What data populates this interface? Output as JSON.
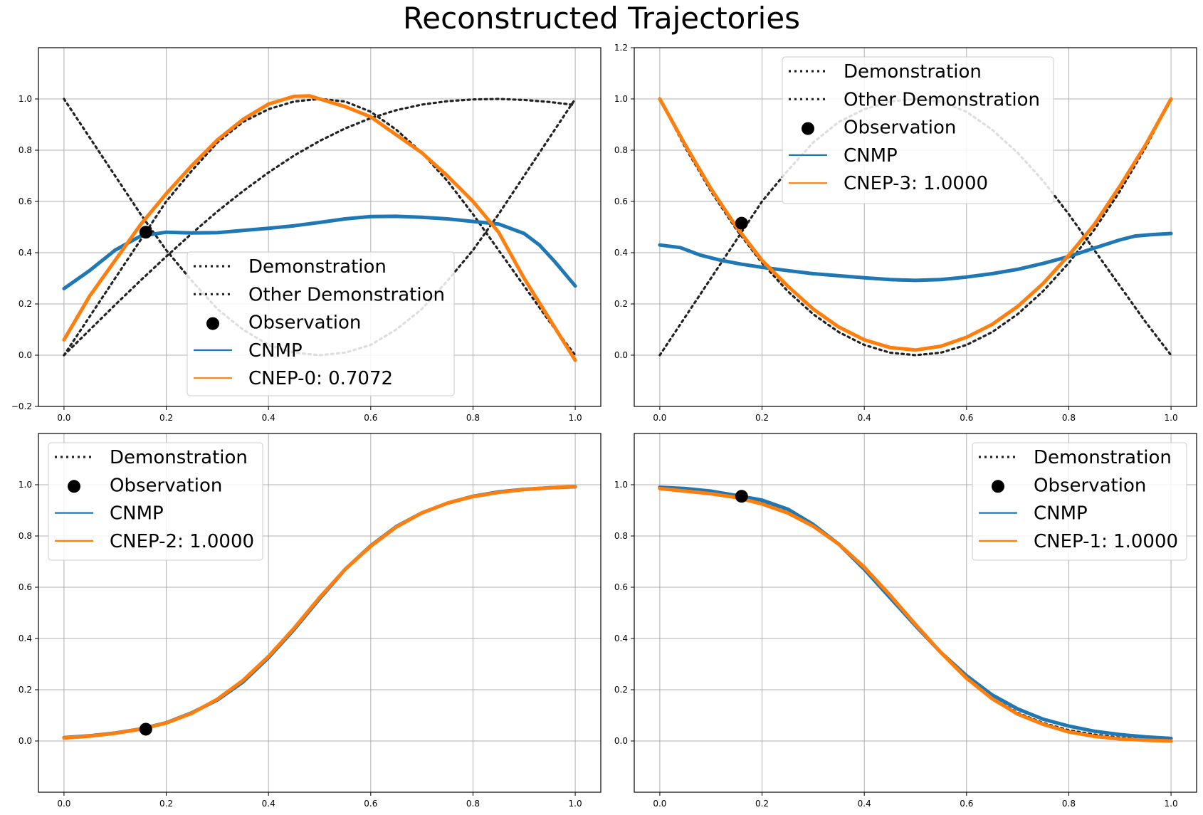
{
  "figure_title": "Reconstructed Trajectories",
  "colors": {
    "cnmp": "#1f77b4",
    "cnep": "#ff7f0e",
    "demo": "#222222",
    "observation": "#000000",
    "grid": "#b0b0b0"
  },
  "chart_data": [
    {
      "type": "line",
      "title": "",
      "xlabel": "",
      "ylabel": "",
      "xlim": [
        -0.05,
        1.05
      ],
      "ylim": [
        -0.2,
        1.2
      ],
      "xticks": [
        0.0,
        0.2,
        0.4,
        0.6,
        0.8,
        1.0
      ],
      "xtick_labels": [
        "0.0",
        "0.2",
        "0.4",
        "0.6",
        "0.8",
        "1.0"
      ],
      "yticks": [
        -0.2,
        0.0,
        0.2,
        0.4,
        0.6,
        0.8,
        1.0
      ],
      "ytick_labels": [
        "−0.2",
        "0.0",
        "0.2",
        "0.4",
        "0.6",
        "0.8",
        "1.0"
      ],
      "grid": true,
      "legend_position": "center",
      "series": [
        {
          "name": "Demonstration",
          "style": "dotted",
          "x": [
            0,
            0.05,
            0.1,
            0.15,
            0.2,
            0.25,
            0.3,
            0.35,
            0.4,
            0.45,
            0.5,
            0.55,
            0.6,
            0.65,
            0.7,
            0.75,
            0.8,
            0.85,
            0.9,
            0.95,
            1.0
          ],
          "y": [
            0,
            0.098,
            0.196,
            0.292,
            0.385,
            0.475,
            0.561,
            0.64,
            0.713,
            0.779,
            0.836,
            0.885,
            0.925,
            0.956,
            0.978,
            0.991,
            0.998,
            1.0,
            0.996,
            0.988,
            0.976
          ]
        },
        {
          "name": "Demonstration",
          "style": "dotted",
          "x": [
            0,
            0.05,
            0.1,
            0.15,
            0.2,
            0.25,
            0.3,
            0.35,
            0.4,
            0.45,
            0.5,
            0.55,
            0.6,
            0.65,
            0.7,
            0.75,
            0.8,
            0.85,
            0.9,
            0.95,
            1.0
          ],
          "y": [
            0,
            0.15,
            0.3,
            0.45,
            0.6,
            0.72,
            0.83,
            0.91,
            0.96,
            0.99,
            1.0,
            0.99,
            0.95,
            0.88,
            0.79,
            0.68,
            0.55,
            0.41,
            0.27,
            0.13,
            0
          ]
        },
        {
          "name": "Other Demonstration",
          "style": "dotted",
          "x": [
            0,
            0.05,
            0.1,
            0.15,
            0.2,
            0.25,
            0.3,
            0.35,
            0.4,
            0.45,
            0.5,
            0.55,
            0.6,
            0.65,
            0.7,
            0.75,
            0.8,
            0.85,
            0.9,
            0.95,
            1.0
          ],
          "y": [
            1.0,
            0.85,
            0.7,
            0.55,
            0.41,
            0.29,
            0.18,
            0.1,
            0.04,
            0.01,
            0,
            0.01,
            0.04,
            0.1,
            0.18,
            0.29,
            0.41,
            0.55,
            0.7,
            0.85,
            1.0
          ]
        },
        {
          "name": "Observation",
          "style": "marker",
          "x": [
            0.16
          ],
          "y": [
            0.48
          ]
        },
        {
          "name": "CNMP",
          "style": "solid",
          "x": [
            0,
            0.05,
            0.1,
            0.15,
            0.2,
            0.25,
            0.3,
            0.35,
            0.4,
            0.45,
            0.5,
            0.55,
            0.6,
            0.65,
            0.7,
            0.75,
            0.8,
            0.85,
            0.9,
            0.93,
            0.96,
            1.0
          ],
          "y": [
            0.26,
            0.33,
            0.41,
            0.465,
            0.48,
            0.477,
            0.478,
            0.487,
            0.495,
            0.505,
            0.518,
            0.532,
            0.541,
            0.542,
            0.538,
            0.532,
            0.522,
            0.512,
            0.475,
            0.43,
            0.365,
            0.27
          ]
        },
        {
          "name": "CNEP-0: 0.7072",
          "style": "solid",
          "x": [
            0,
            0.05,
            0.1,
            0.15,
            0.2,
            0.25,
            0.3,
            0.35,
            0.4,
            0.45,
            0.48,
            0.5,
            0.55,
            0.6,
            0.65,
            0.7,
            0.75,
            0.8,
            0.85,
            0.9,
            0.95,
            1.0
          ],
          "y": [
            0.06,
            0.23,
            0.37,
            0.51,
            0.63,
            0.74,
            0.84,
            0.92,
            0.98,
            1.01,
            1.012,
            1.0,
            0.97,
            0.93,
            0.86,
            0.79,
            0.7,
            0.6,
            0.48,
            0.3,
            0.14,
            -0.02
          ]
        }
      ]
    },
    {
      "type": "line",
      "title": "",
      "xlabel": "",
      "ylabel": "",
      "xlim": [
        -0.05,
        1.05
      ],
      "ylim": [
        -0.2,
        1.2
      ],
      "xticks": [
        0.0,
        0.2,
        0.4,
        0.6,
        0.8,
        1.0
      ],
      "xtick_labels": [
        "0.0",
        "0.2",
        "0.4",
        "0.6",
        "0.8",
        "1.0"
      ],
      "yticks": [
        0.0,
        0.2,
        0.4,
        0.6,
        0.8,
        1.0,
        1.2
      ],
      "ytick_labels": [
        "0.0",
        "0.2",
        "0.4",
        "0.6",
        "0.8",
        "1.0",
        "1.2"
      ],
      "grid": true,
      "legend_position": "upper center",
      "series": [
        {
          "name": "Demonstration",
          "style": "dotted",
          "x": [
            0,
            0.05,
            0.1,
            0.15,
            0.2,
            0.25,
            0.3,
            0.35,
            0.4,
            0.45,
            0.5,
            0.55,
            0.6,
            0.65,
            0.7,
            0.75,
            0.8,
            0.85,
            0.9,
            0.95,
            1.0
          ],
          "y": [
            1.0,
            0.81,
            0.64,
            0.49,
            0.36,
            0.25,
            0.16,
            0.09,
            0.04,
            0.01,
            0,
            0.01,
            0.04,
            0.09,
            0.16,
            0.25,
            0.36,
            0.49,
            0.64,
            0.81,
            1.0
          ]
        },
        {
          "name": "Other Demonstration",
          "style": "dotted",
          "x": [
            0,
            0.05,
            0.1,
            0.15,
            0.2,
            0.25,
            0.3,
            0.35,
            0.4,
            0.45,
            0.5,
            0.55,
            0.6,
            0.65,
            0.7,
            0.75,
            0.8,
            0.85,
            0.9,
            0.95,
            1.0
          ],
          "y": [
            0,
            0.15,
            0.3,
            0.45,
            0.6,
            0.72,
            0.83,
            0.91,
            0.96,
            0.99,
            1.0,
            0.99,
            0.95,
            0.88,
            0.79,
            0.68,
            0.55,
            0.41,
            0.27,
            0.13,
            0
          ]
        },
        {
          "name": "Observation",
          "style": "marker",
          "x": [
            0.16
          ],
          "y": [
            0.515
          ]
        },
        {
          "name": "CNMP",
          "style": "solid",
          "x": [
            0,
            0.04,
            0.08,
            0.12,
            0.16,
            0.2,
            0.25,
            0.3,
            0.35,
            0.4,
            0.45,
            0.5,
            0.55,
            0.6,
            0.65,
            0.7,
            0.75,
            0.8,
            0.85,
            0.9,
            0.93,
            0.96,
            1.0
          ],
          "y": [
            0.43,
            0.42,
            0.39,
            0.37,
            0.355,
            0.343,
            0.33,
            0.318,
            0.31,
            0.302,
            0.295,
            0.292,
            0.295,
            0.305,
            0.318,
            0.335,
            0.358,
            0.385,
            0.418,
            0.45,
            0.465,
            0.47,
            0.475
          ]
        },
        {
          "name": "CNEP-3: 1.0000",
          "style": "solid",
          "x": [
            0,
            0.05,
            0.1,
            0.15,
            0.2,
            0.25,
            0.3,
            0.35,
            0.4,
            0.45,
            0.5,
            0.55,
            0.6,
            0.65,
            0.7,
            0.75,
            0.8,
            0.85,
            0.9,
            0.95,
            1.0
          ],
          "y": [
            1.0,
            0.82,
            0.65,
            0.5,
            0.37,
            0.27,
            0.18,
            0.11,
            0.06,
            0.03,
            0.02,
            0.035,
            0.07,
            0.12,
            0.19,
            0.28,
            0.39,
            0.51,
            0.66,
            0.82,
            1.0
          ]
        }
      ]
    },
    {
      "type": "line",
      "title": "",
      "xlabel": "",
      "ylabel": "",
      "xlim": [
        -0.05,
        1.05
      ],
      "ylim": [
        -0.2,
        1.2
      ],
      "xticks": [
        0.0,
        0.2,
        0.4,
        0.6,
        0.8,
        1.0
      ],
      "xtick_labels": [
        "0.0",
        "0.2",
        "0.4",
        "0.6",
        "0.8",
        "1.0"
      ],
      "yticks": [
        0.0,
        0.2,
        0.4,
        0.6,
        0.8,
        1.0
      ],
      "ytick_labels": [
        "0.0",
        "0.2",
        "0.4",
        "0.6",
        "0.8",
        "1.0"
      ],
      "grid": true,
      "legend_position": "upper left",
      "series": [
        {
          "name": "Demonstration",
          "style": "dotted",
          "x": [
            0,
            0.05,
            0.1,
            0.15,
            0.2,
            0.25,
            0.3,
            0.35,
            0.4,
            0.45,
            0.5,
            0.55,
            0.6,
            0.65,
            0.7,
            0.75,
            0.8,
            0.85,
            0.9,
            0.95,
            1.0
          ],
          "y": [
            0.012,
            0.019,
            0.03,
            0.046,
            0.07,
            0.108,
            0.163,
            0.236,
            0.33,
            0.44,
            0.56,
            0.67,
            0.76,
            0.835,
            0.89,
            0.928,
            0.954,
            0.97,
            0.981,
            0.988,
            0.993
          ]
        },
        {
          "name": "Observation",
          "style": "marker",
          "x": [
            0.16
          ],
          "y": [
            0.046
          ]
        },
        {
          "name": "CNMP",
          "style": "solid",
          "x": [
            0,
            0.05,
            0.1,
            0.15,
            0.2,
            0.25,
            0.3,
            0.35,
            0.4,
            0.45,
            0.5,
            0.55,
            0.6,
            0.65,
            0.7,
            0.75,
            0.8,
            0.85,
            0.9,
            0.95,
            1.0
          ],
          "y": [
            0.013,
            0.02,
            0.031,
            0.047,
            0.071,
            0.11,
            0.16,
            0.23,
            0.325,
            0.435,
            0.555,
            0.67,
            0.762,
            0.837,
            0.89,
            0.928,
            0.955,
            0.972,
            0.982,
            0.988,
            0.992
          ]
        },
        {
          "name": "CNEP-2: 1.0000",
          "style": "solid",
          "x": [
            0,
            0.05,
            0.1,
            0.15,
            0.2,
            0.25,
            0.3,
            0.35,
            0.4,
            0.45,
            0.5,
            0.55,
            0.6,
            0.65,
            0.7,
            0.75,
            0.8,
            0.85,
            0.9,
            0.95,
            1.0
          ],
          "y": [
            0.012,
            0.019,
            0.03,
            0.046,
            0.07,
            0.108,
            0.163,
            0.236,
            0.33,
            0.44,
            0.56,
            0.67,
            0.76,
            0.835,
            0.89,
            0.928,
            0.954,
            0.97,
            0.981,
            0.988,
            0.993
          ]
        }
      ]
    },
    {
      "type": "line",
      "title": "",
      "xlabel": "",
      "ylabel": "",
      "xlim": [
        -0.05,
        1.05
      ],
      "ylim": [
        -0.2,
        1.2
      ],
      "xticks": [
        0.0,
        0.2,
        0.4,
        0.6,
        0.8,
        1.0
      ],
      "xtick_labels": [
        "0.0",
        "0.2",
        "0.4",
        "0.6",
        "0.8",
        "1.0"
      ],
      "yticks": [
        0.0,
        0.2,
        0.4,
        0.6,
        0.8,
        1.0
      ],
      "ytick_labels": [
        "0.0",
        "0.2",
        "0.4",
        "0.6",
        "0.8",
        "1.0"
      ],
      "grid": true,
      "legend_position": "upper right",
      "series": [
        {
          "name": "Demonstration",
          "style": "dotted",
          "x": [
            0,
            0.05,
            0.1,
            0.15,
            0.2,
            0.25,
            0.3,
            0.35,
            0.4,
            0.45,
            0.5,
            0.55,
            0.6,
            0.65,
            0.7,
            0.75,
            0.8,
            0.85,
            0.9,
            0.95,
            1.0
          ],
          "y": [
            0.985,
            0.978,
            0.968,
            0.952,
            0.93,
            0.893,
            0.838,
            0.765,
            0.675,
            0.568,
            0.455,
            0.345,
            0.248,
            0.168,
            0.11,
            0.07,
            0.042,
            0.025,
            0.013,
            0.006,
            0.002
          ]
        },
        {
          "name": "Observation",
          "style": "marker",
          "x": [
            0.16
          ],
          "y": [
            0.955
          ]
        },
        {
          "name": "CNMP",
          "style": "solid",
          "x": [
            0,
            0.05,
            0.1,
            0.15,
            0.2,
            0.25,
            0.3,
            0.35,
            0.4,
            0.45,
            0.5,
            0.55,
            0.6,
            0.65,
            0.7,
            0.75,
            0.8,
            0.85,
            0.9,
            0.95,
            1.0
          ],
          "y": [
            0.99,
            0.985,
            0.975,
            0.958,
            0.94,
            0.905,
            0.845,
            0.768,
            0.67,
            0.56,
            0.45,
            0.345,
            0.255,
            0.18,
            0.125,
            0.085,
            0.058,
            0.038,
            0.025,
            0.016,
            0.01
          ]
        },
        {
          "name": "CNEP-1: 1.0000",
          "style": "solid",
          "x": [
            0,
            0.05,
            0.1,
            0.15,
            0.2,
            0.25,
            0.3,
            0.35,
            0.4,
            0.45,
            0.5,
            0.55,
            0.6,
            0.65,
            0.7,
            0.75,
            0.8,
            0.85,
            0.9,
            0.95,
            1.0
          ],
          "y": [
            0.985,
            0.975,
            0.965,
            0.95,
            0.925,
            0.89,
            0.838,
            0.768,
            0.678,
            0.57,
            0.455,
            0.345,
            0.245,
            0.165,
            0.105,
            0.065,
            0.035,
            0.018,
            0.008,
            0.003,
            0.0
          ]
        }
      ]
    }
  ]
}
